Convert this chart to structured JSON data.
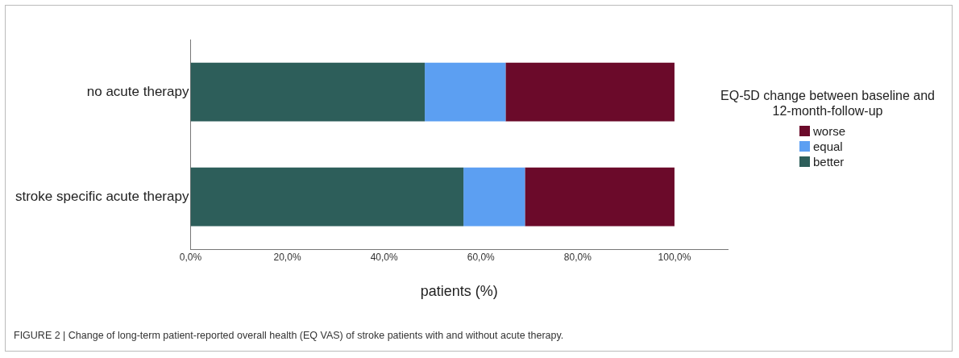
{
  "chart_data": {
    "type": "bar",
    "orientation": "horizontal",
    "stacked": true,
    "xlabel": "patients (%)",
    "legend_title": "EQ-5D change between baseline and 12-month-follow-up",
    "legend": "right",
    "grid": false,
    "categories": [
      "no acute therapy",
      "stroke specific acute therapy"
    ],
    "series": [
      {
        "name": "better",
        "color": "#2d5e5a",
        "values": [
          48.4,
          56.4
        ]
      },
      {
        "name": "equal",
        "color": "#5c9ff2",
        "values": [
          16.7,
          12.7
        ]
      },
      {
        "name": "worse",
        "color": "#6b0a2a",
        "values": [
          34.9,
          30.9
        ]
      }
    ],
    "xlim": [
      0,
      111
    ],
    "xticks": [
      {
        "value": 0,
        "label": "0,0%"
      },
      {
        "value": 20,
        "label": "20,0%"
      },
      {
        "value": 40,
        "label": "40,0%"
      },
      {
        "value": 60,
        "label": "60,0%"
      },
      {
        "value": 80,
        "label": "80,0%"
      },
      {
        "value": 100,
        "label": "100,0%"
      }
    ],
    "annotations": [
      "FIGURE 2 | Change of long-term patient-reported overall health (EQ VAS) of stroke patients with and without acute therapy."
    ]
  }
}
